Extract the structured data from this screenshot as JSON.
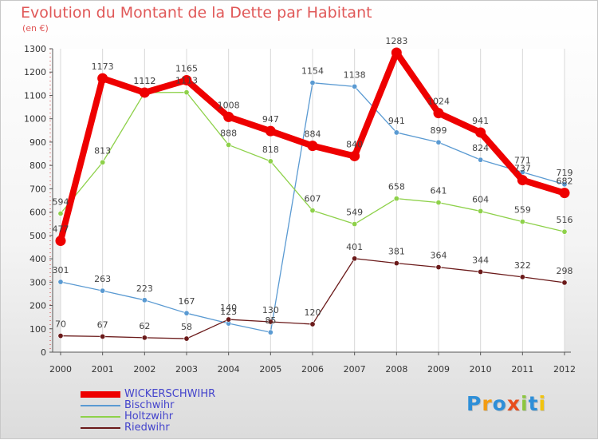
{
  "title": "Evolution du Montant de la Dette par Habitant",
  "subtitle": "(en €)",
  "logo": {
    "letters": [
      "P",
      "r",
      "o",
      "x",
      "i",
      "t",
      "i"
    ],
    "colors": [
      "#2e8fd8",
      "#f39c12",
      "#2e8fd8",
      "#e84d1c",
      "#8cc63f",
      "#2e8fd8",
      "#f1c40f"
    ]
  },
  "chart_data": {
    "type": "line",
    "title": "Evolution du Montant de la Dette par Habitant",
    "ylabel": "(en €)",
    "xlabel": "",
    "x": [
      "2000",
      "2001",
      "2002",
      "2003",
      "2004",
      "2005",
      "2006",
      "2007",
      "2008",
      "2009",
      "2010",
      "2011",
      "2012"
    ],
    "ylim": [
      0,
      1300
    ],
    "yticks": [
      0,
      100,
      200,
      300,
      400,
      500,
      600,
      700,
      800,
      900,
      1000,
      1100,
      1200,
      1300
    ],
    "grid": "vertical",
    "legend": "bottom-left",
    "series": [
      {
        "name": "WICKERSCHWIHR",
        "color": "#ee0000",
        "values": [
          477,
          1173,
          1112,
          1165,
          1008,
          947,
          884,
          840,
          1283,
          1024,
          941,
          737,
          682
        ]
      },
      {
        "name": "Bischwihr",
        "color": "#5a9ad2",
        "values": [
          301,
          263,
          223,
          167,
          123,
          85,
          1154,
          1138,
          941,
          899,
          824,
          771,
          719
        ]
      },
      {
        "name": "Holtzwihr",
        "color": "#8ed14a",
        "values": [
          594,
          813,
          1112,
          1113,
          888,
          818,
          607,
          549,
          658,
          641,
          604,
          559,
          516
        ]
      },
      {
        "name": "Riedwihr",
        "color": "#6b1a1a",
        "values": [
          70,
          67,
          62,
          58,
          140,
          130,
          120,
          401,
          381,
          364,
          344,
          322,
          298
        ]
      }
    ]
  }
}
